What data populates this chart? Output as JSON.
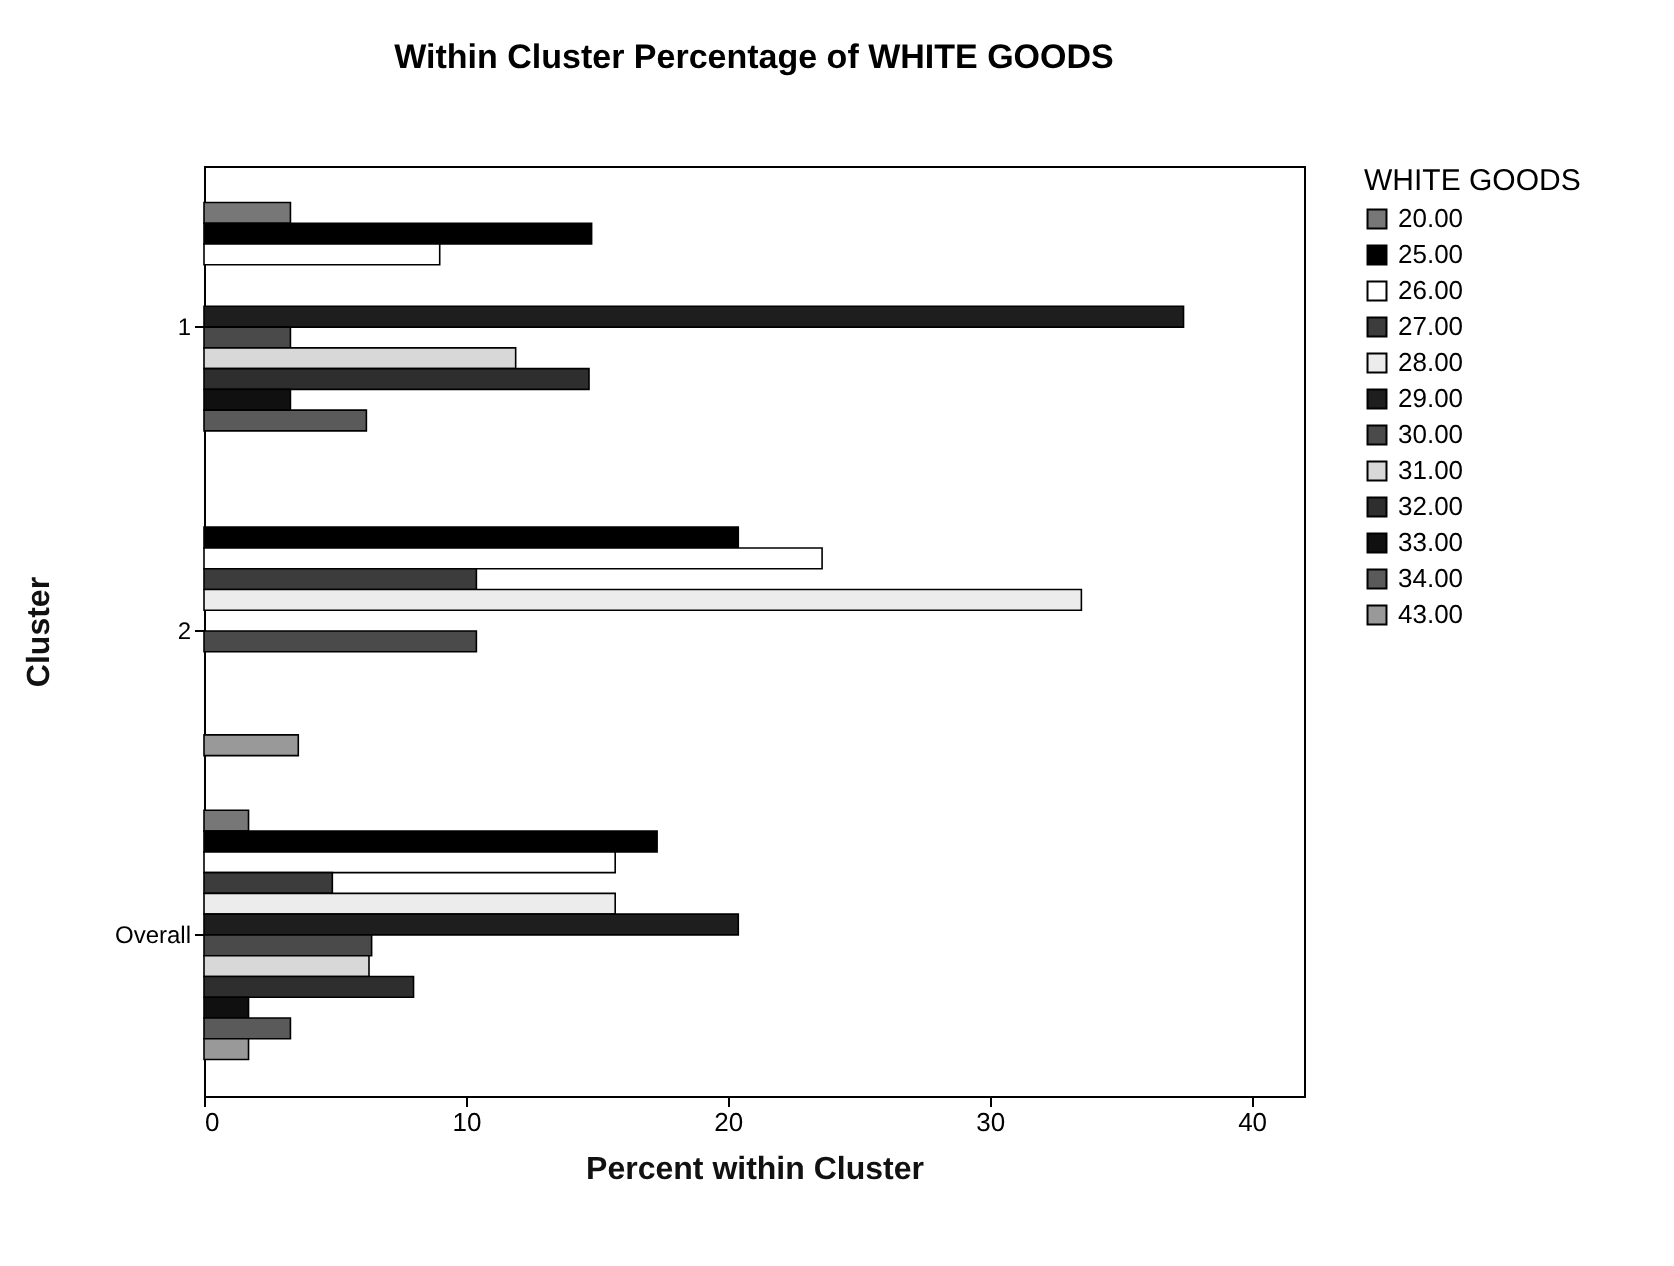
{
  "chart_data": {
    "type": "bar",
    "orientation": "horizontal",
    "title": "Within Cluster Percentage of WHITE GOODS",
    "xlabel": "Percent within Cluster",
    "ylabel": "Cluster",
    "legend_title": "WHITE GOODS",
    "legend": "right",
    "categories": [
      "1",
      "2",
      "Overall"
    ],
    "xlim": [
      0,
      42
    ],
    "xticks": [
      0,
      10,
      20,
      30,
      40
    ],
    "series": [
      {
        "name": "20.00",
        "color": "#777777",
        "values": [
          3.3,
          null,
          1.7
        ]
      },
      {
        "name": "25.00",
        "color": "#000000",
        "values": [
          14.8,
          20.4,
          17.3
        ]
      },
      {
        "name": "26.00",
        "color": "#ffffff",
        "values": [
          9.0,
          23.6,
          15.7
        ]
      },
      {
        "name": "27.00",
        "color": "#3c3c3c",
        "values": [
          null,
          10.4,
          4.9
        ]
      },
      {
        "name": "28.00",
        "color": "#ececec",
        "values": [
          null,
          33.5,
          15.7
        ]
      },
      {
        "name": "29.00",
        "color": "#1e1e1e",
        "values": [
          37.4,
          null,
          20.4
        ]
      },
      {
        "name": "30.00",
        "color": "#4a4a4a",
        "values": [
          3.3,
          10.4,
          6.4
        ]
      },
      {
        "name": "31.00",
        "color": "#d8d8d8",
        "values": [
          11.9,
          null,
          6.3
        ]
      },
      {
        "name": "32.00",
        "color": "#2e2e2e",
        "values": [
          14.7,
          null,
          8.0
        ]
      },
      {
        "name": "33.00",
        "color": "#101010",
        "values": [
          3.3,
          null,
          1.7
        ]
      },
      {
        "name": "34.00",
        "color": "#5a5a5a",
        "values": [
          6.2,
          null,
          3.3
        ]
      },
      {
        "name": "43.00",
        "color": "#999999",
        "values": [
          null,
          3.6,
          1.7
        ]
      }
    ]
  }
}
